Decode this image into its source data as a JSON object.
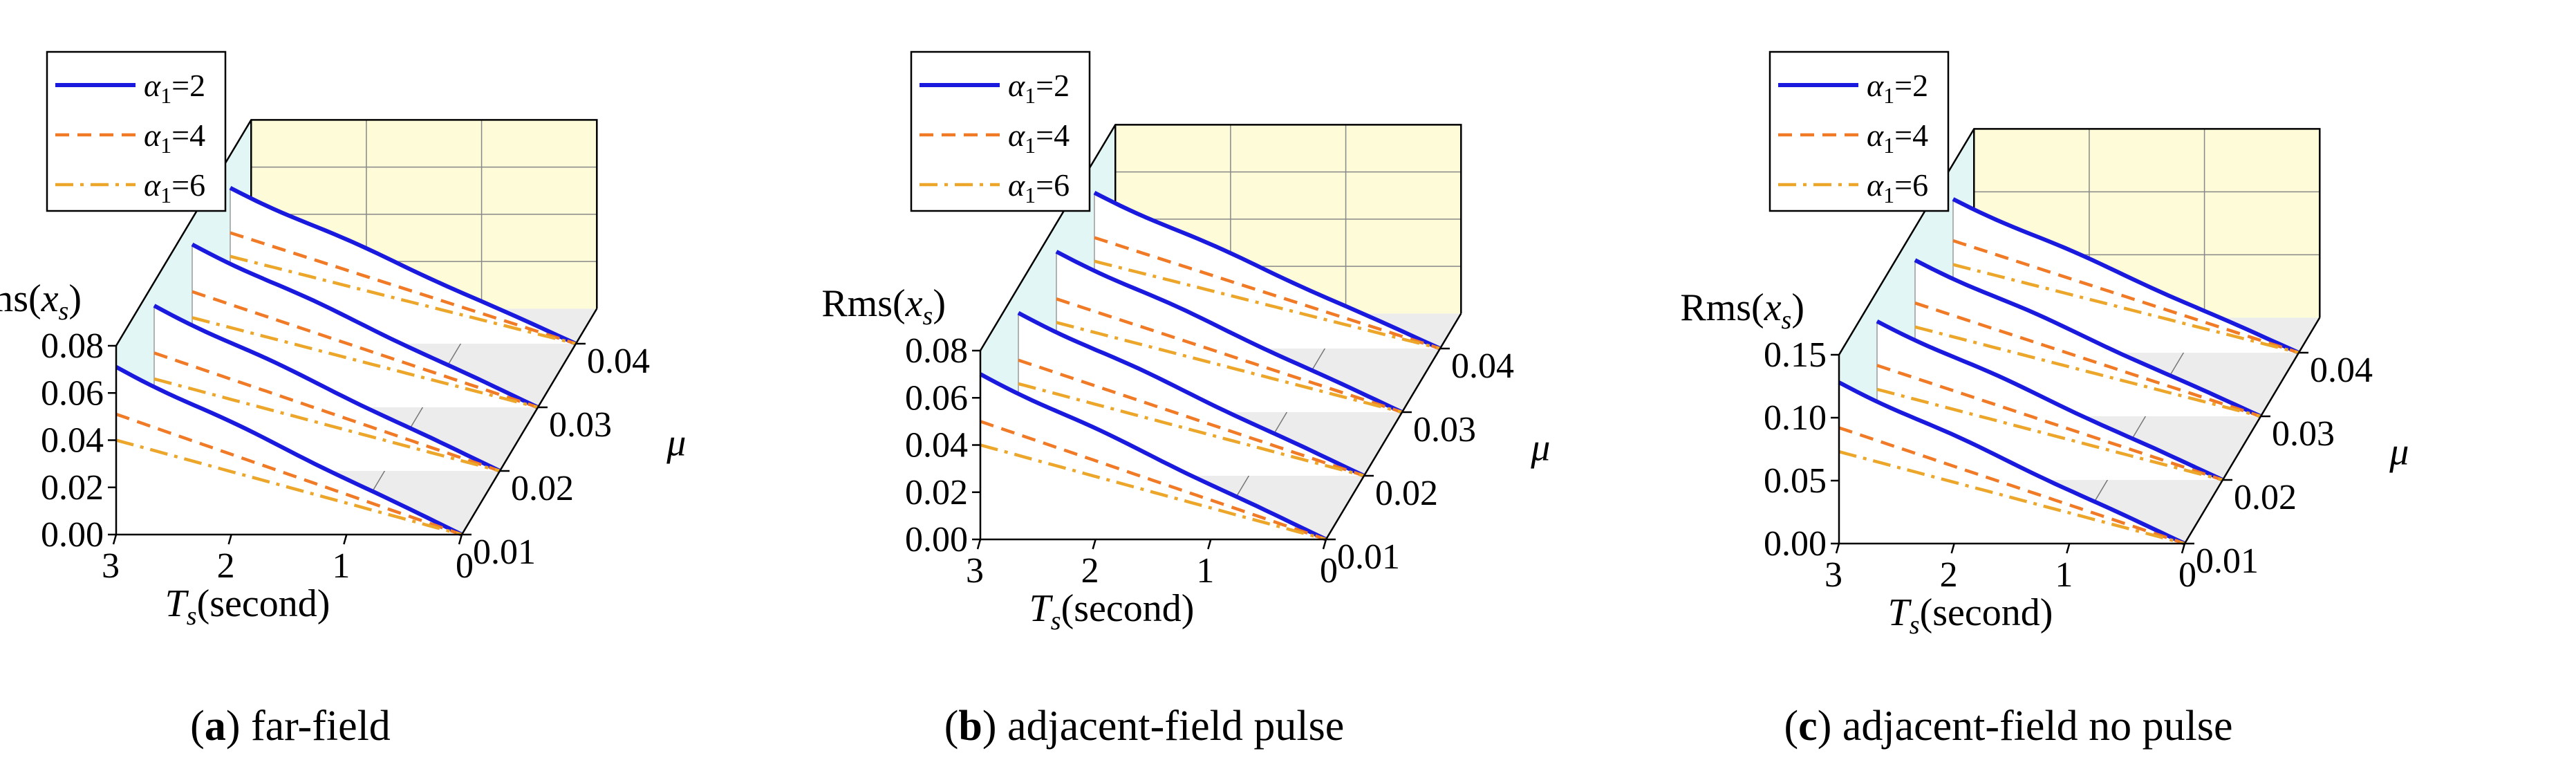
{
  "chart_data": [
    {
      "type": "line",
      "caption_letter": "a",
      "caption_text": "far-field",
      "zlabel": "Rms(x_s)",
      "xlabel": "T_s(second)",
      "ylabel": "μ",
      "x_ticks": [
        "3",
        "2",
        "1",
        "0"
      ],
      "y_ticks": [
        "0.01",
        "0.02",
        "0.03",
        "0.04"
      ],
      "z_ticks": [
        "0.08",
        "0.06",
        "0.04",
        "0.02",
        "0.00"
      ],
      "zlim": [
        0,
        0.08
      ],
      "xlim": [
        0,
        3
      ],
      "mu_values": [
        0.01,
        0.02,
        0.03,
        0.04
      ],
      "legend": [
        "α1=2",
        "α1=4",
        "α1=6"
      ],
      "series": [
        {
          "name": "α1=2",
          "color": "#1a1adf",
          "style": "solid",
          "start_values": [
            0.071,
            0.07,
            0.069,
            0.066
          ]
        },
        {
          "name": "α1=4",
          "color": "#f07a25",
          "style": "dashed",
          "start_values": [
            0.051,
            0.05,
            0.049,
            0.047
          ]
        },
        {
          "name": "α1=6",
          "color": "#eca62a",
          "style": "dashdot",
          "start_values": [
            0.04,
            0.039,
            0.038,
            0.037
          ]
        }
      ]
    },
    {
      "type": "line",
      "caption_letter": "b",
      "caption_text": "adjacent-field pulse",
      "zlabel": "Rms(x_s)",
      "xlabel": "T_s(second)",
      "ylabel": "μ",
      "x_ticks": [
        "3",
        "2",
        "1",
        "0"
      ],
      "y_ticks": [
        "0.01",
        "0.02",
        "0.03",
        "0.04"
      ],
      "z_ticks": [
        "0.08",
        "0.06",
        "0.04",
        "0.02",
        "0.00"
      ],
      "zlim": [
        0,
        0.08
      ],
      "xlim": [
        0,
        3
      ],
      "mu_values": [
        0.01,
        0.02,
        0.03,
        0.04
      ],
      "legend": [
        "α1=2",
        "α1=4",
        "α1=6"
      ],
      "series": [
        {
          "name": "α1=2",
          "color": "#1a1adf",
          "style": "solid",
          "start_values": [
            0.07,
            0.069,
            0.068,
            0.066
          ]
        },
        {
          "name": "α1=4",
          "color": "#f07a25",
          "style": "dashed",
          "start_values": [
            0.05,
            0.049,
            0.048,
            0.047
          ]
        },
        {
          "name": "α1=6",
          "color": "#eca62a",
          "style": "dashdot",
          "start_values": [
            0.04,
            0.039,
            0.038,
            0.037
          ]
        }
      ]
    },
    {
      "type": "line",
      "caption_letter": "c",
      "caption_text": "adjacent-field no pulse",
      "zlabel": "Rms(x_s)",
      "xlabel": "T_s(second)",
      "ylabel": "μ",
      "x_ticks": [
        "3",
        "2",
        "1",
        "0"
      ],
      "y_ticks": [
        "0.01",
        "0.02",
        "0.03",
        "0.04"
      ],
      "z_ticks": [
        "0.15",
        "0.10",
        "0.05",
        "0.00"
      ],
      "zlim": [
        0,
        0.15
      ],
      "xlim": [
        0,
        3
      ],
      "mu_values": [
        0.01,
        0.02,
        0.03,
        0.04
      ],
      "legend": [
        "α1=2",
        "α1=4",
        "α1=6"
      ],
      "series": [
        {
          "name": "α1=2",
          "color": "#1a1adf",
          "style": "solid",
          "start_values": [
            0.128,
            0.126,
            0.124,
            0.122
          ]
        },
        {
          "name": "α1=4",
          "color": "#f07a25",
          "style": "dashed",
          "start_values": [
            0.092,
            0.091,
            0.09,
            0.089
          ]
        },
        {
          "name": "α1=6",
          "color": "#eca62a",
          "style": "dashdot",
          "start_values": [
            0.073,
            0.072,
            0.071,
            0.07
          ]
        }
      ]
    }
  ]
}
